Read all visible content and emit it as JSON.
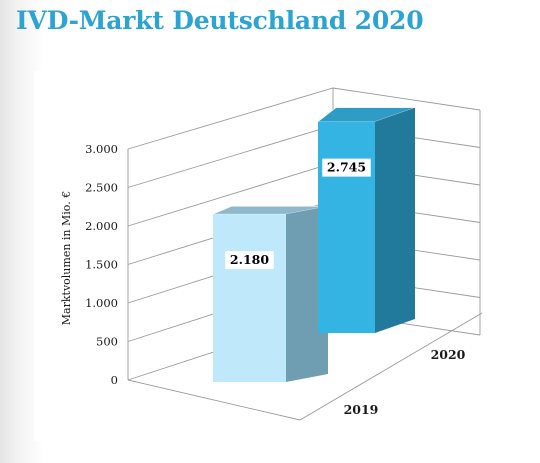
{
  "header": {
    "title": "IVD-Markt Deutschland 2020"
  },
  "chart_data": {
    "type": "bar",
    "categories": [
      "2019",
      "2020"
    ],
    "values": [
      2180,
      2745
    ],
    "value_labels": [
      "2.180",
      "2.745"
    ],
    "ylabel": "Marktvolumen in Mio. €",
    "ylim": [
      0,
      3000
    ],
    "yticks": [
      0,
      500,
      1000,
      1500,
      2000,
      2500,
      3000
    ],
    "ytick_labels": [
      "0",
      "500",
      "1.000",
      "1.500",
      "2.000",
      "2.500",
      "3.000"
    ],
    "grid": true,
    "colors": {
      "bar_2019_front": "#bfe9fb",
      "bar_2019_side": "#6f9eb2",
      "bar_2019_top": "#8fb9ca",
      "bar_2020_front": "#34b4e3",
      "bar_2020_side": "#217a9c",
      "bar_2020_top": "#2e9cc5",
      "title": "#2ba3d3"
    }
  }
}
